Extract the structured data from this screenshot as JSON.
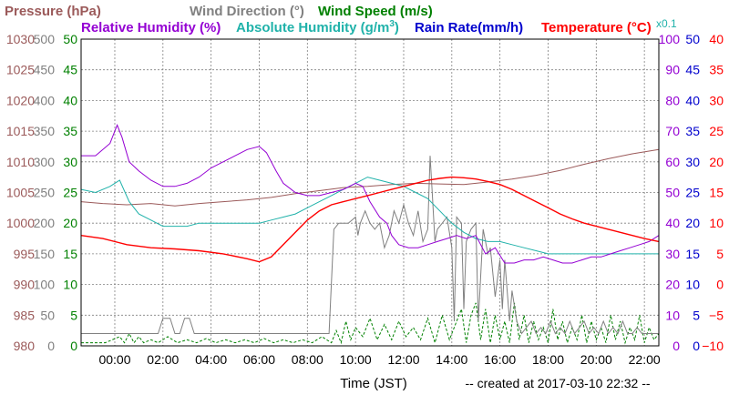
{
  "chart_data": {
    "type": "line",
    "title_row1": [
      {
        "text": "Pressure (hPa)",
        "color": "#9b5a5a"
      },
      {
        "text": "Wind Direction (°)",
        "color": "#808080"
      },
      {
        "text": "Wind Speed (m/s)",
        "color": "#008000"
      }
    ],
    "title_row2": [
      {
        "text": "Relative Humidity (%)",
        "color": "#9400d3"
      },
      {
        "text": "Absolute Humidity (g/m",
        "color": "#20b2aa",
        "sup": "3",
        "tail": ")"
      },
      {
        "text": "Rain Rate(mm/h)",
        "color": "#0000cd"
      },
      {
        "text": "Temperature (°C)",
        "color": "#ff0000"
      }
    ],
    "x10_label": "x0.1",
    "xlabel": "Time (JST)",
    "created": "-- created at 2017-03-10 22:32 --",
    "xlim": [
      -1.4,
      22.6
    ],
    "x_ticks": [
      "00:00",
      "02:00",
      "04:00",
      "06:00",
      "08:00",
      "10:00",
      "12:00",
      "14:00",
      "16:00",
      "18:00",
      "20:00",
      "22:00"
    ],
    "x_tick_values": [
      0,
      2,
      4,
      6,
      8,
      10,
      12,
      14,
      16,
      18,
      20,
      22
    ],
    "left_axes": [
      {
        "name": "pressure",
        "color": "#9b5a5a",
        "ticks": [
          "980",
          "985",
          "990",
          "995",
          "1000",
          "1005",
          "1010",
          "1015",
          "1020",
          "1025",
          "1030"
        ]
      },
      {
        "name": "wind-direction",
        "color": "#808080",
        "ticks": [
          "0",
          "50",
          "100",
          "150",
          "200",
          "250",
          "300",
          "350",
          "400",
          "450",
          "500"
        ]
      },
      {
        "name": "wind-speed",
        "color": "#008000",
        "ticks": [
          "0",
          "5",
          "10",
          "15",
          "20",
          "25",
          "30",
          "35",
          "40",
          "45",
          "50"
        ]
      }
    ],
    "right_axes": [
      {
        "name": "relative-humidity",
        "color": "#9400d3",
        "ticks": [
          "0",
          "10",
          "20",
          "30",
          "40",
          "50",
          "60",
          "70",
          "80",
          "90",
          "100"
        ]
      },
      {
        "name": "rain-rate",
        "color": "#0000cd",
        "ticks": [
          "0",
          "5",
          "10",
          "15",
          "20",
          "25",
          "30",
          "35",
          "40",
          "45",
          "50"
        ]
      },
      {
        "name": "temperature",
        "color": "#ff0000",
        "ticks": [
          "−10",
          "−5",
          "0",
          "5",
          "10",
          "15",
          "20",
          "25",
          "30",
          "35",
          "40"
        ]
      }
    ],
    "series": [
      {
        "name": "Pressure (hPa)",
        "key": "pressure",
        "color": "#9b5a5a",
        "dash": "",
        "width": 1,
        "ymin": 980,
        "ymax": 1030,
        "x": [
          -1.4,
          -0.5,
          0.5,
          1.5,
          2.5,
          3.5,
          4.5,
          5.5,
          6.5,
          7.5,
          8.5,
          9.5,
          10.5,
          11.5,
          12.5,
          13.5,
          14.5,
          15.5,
          16.5,
          17.5,
          18.5,
          19.5,
          20.5,
          21.5,
          22.6
        ],
        "y": [
          1003.5,
          1003.2,
          1003.0,
          1003.2,
          1002.8,
          1003.2,
          1003.5,
          1003.8,
          1004.2,
          1004.8,
          1005.3,
          1005.8,
          1006.0,
          1006.3,
          1006.5,
          1006.4,
          1006.3,
          1006.7,
          1007.2,
          1007.8,
          1008.6,
          1009.6,
          1010.5,
          1011.3,
          1012.0
        ]
      },
      {
        "name": "Wind Direction (°)",
        "key": "wind-direction",
        "color": "#808080",
        "dash": "",
        "width": 1,
        "ymin": 0,
        "ymax": 500,
        "x": [
          -1.4,
          1.8,
          2.0,
          2.3,
          2.5,
          2.7,
          2.9,
          3.1,
          3.3,
          3.5,
          3.6,
          8.9,
          9.1,
          9.3,
          9.5,
          9.7,
          10.0,
          10.1,
          10.2,
          10.4,
          10.6,
          10.8,
          11.0,
          11.2,
          11.4,
          11.6,
          11.8,
          12.0,
          12.2,
          12.4,
          12.6,
          12.8,
          13.0,
          13.1,
          13.2,
          13.3,
          13.4,
          13.6,
          13.8,
          14.0,
          14.1,
          14.2,
          14.4,
          14.5,
          14.6,
          14.8,
          15.0,
          15.1,
          15.3,
          15.5,
          15.6,
          15.8,
          16.0,
          16.1,
          16.2,
          16.4,
          16.5,
          16.7,
          16.9,
          17.1,
          17.3,
          17.5,
          17.7,
          17.9,
          18.1,
          18.3,
          18.5,
          18.7,
          18.9,
          19.1,
          19.3,
          19.5,
          19.7,
          19.9,
          20.1,
          20.3,
          20.5,
          20.7,
          20.9,
          21.1,
          21.3,
          21.5,
          21.7,
          21.9,
          22.1,
          22.3,
          22.6
        ],
        "y": [
          20,
          20,
          45,
          45,
          20,
          20,
          45,
          45,
          20,
          20,
          20,
          20,
          190,
          200,
          200,
          200,
          210,
          180,
          200,
          220,
          200,
          190,
          200,
          160,
          180,
          220,
          200,
          230,
          200,
          180,
          220,
          170,
          190,
          310,
          240,
          170,
          190,
          200,
          210,
          160,
          40,
          210,
          200,
          60,
          170,
          190,
          200,
          40,
          190,
          150,
          160,
          80,
          140,
          60,
          140,
          40,
          90,
          40,
          20,
          30,
          40,
          20,
          30,
          20,
          40,
          20,
          30,
          20,
          40,
          20,
          30,
          40,
          20,
          30,
          20,
          40,
          20,
          30,
          20,
          40,
          20,
          20,
          30,
          20,
          20,
          20,
          20
        ]
      },
      {
        "name": "Wind Speed (m/s)",
        "key": "wind-speed",
        "color": "#008000",
        "dash": "3,2",
        "width": 1,
        "ymin": 0,
        "ymax": 50,
        "x": [
          -1.4,
          -0.4,
          0.2,
          0.4,
          0.6,
          0.8,
          1.0,
          1.2,
          1.5,
          1.8,
          2.2,
          2.6,
          3.0,
          3.4,
          3.8,
          4.2,
          4.6,
          5.0,
          5.4,
          5.8,
          6.2,
          6.6,
          7.0,
          7.4,
          7.8,
          8.2,
          8.6,
          9.0,
          9.2,
          9.4,
          9.6,
          9.8,
          10.0,
          10.3,
          10.6,
          10.9,
          11.2,
          11.5,
          11.8,
          12.1,
          12.4,
          12.7,
          13.0,
          13.3,
          13.6,
          13.9,
          14.2,
          14.4,
          14.6,
          14.8,
          15.0,
          15.2,
          15.4,
          15.6,
          15.8,
          16.0,
          16.2,
          16.4,
          16.6,
          16.8,
          17.0,
          17.2,
          17.4,
          17.6,
          17.8,
          18.0,
          18.2,
          18.4,
          18.6,
          18.8,
          19.0,
          19.2,
          19.4,
          19.6,
          19.8,
          20.0,
          20.2,
          20.4,
          20.6,
          20.8,
          21.0,
          21.2,
          21.4,
          21.6,
          21.8,
          22.0,
          22.2,
          22.4,
          22.6
        ],
        "y": [
          0.5,
          0.5,
          1.5,
          0.5,
          2.0,
          0.5,
          1.5,
          0.5,
          1.0,
          0.5,
          1.5,
          0.5,
          1.0,
          0.5,
          1.2,
          0.5,
          1.0,
          0.5,
          1.0,
          0.5,
          1.2,
          0.5,
          1.0,
          0.5,
          1.0,
          0.5,
          1.5,
          0.5,
          2.5,
          0.5,
          4.0,
          1.0,
          3.0,
          1.5,
          4.5,
          1.0,
          3.5,
          1.0,
          4.0,
          1.5,
          3.0,
          1.0,
          4.5,
          0.5,
          5.0,
          1.0,
          4.0,
          6.0,
          0.5,
          5.0,
          7.0,
          1.0,
          6.0,
          0.5,
          5.0,
          1.0,
          4.0,
          0.5,
          7.0,
          1.0,
          5.0,
          0.5,
          4.0,
          1.0,
          3.0,
          0.5,
          6.0,
          1.0,
          4.0,
          0.5,
          3.0,
          1.0,
          5.0,
          0.5,
          4.0,
          1.0,
          3.0,
          0.5,
          5.0,
          1.0,
          4.0,
          0.5,
          3.0,
          1.0,
          5.0,
          0.5,
          3.0,
          1.0,
          2.0
        ]
      },
      {
        "name": "Relative Humidity (%)",
        "key": "relative-humidity",
        "color": "#9400d3",
        "dash": "",
        "width": 1,
        "ymin": 0,
        "ymax": 100,
        "x": [
          -1.4,
          -0.8,
          -0.2,
          0.1,
          0.3,
          0.6,
          1.0,
          1.5,
          2.0,
          2.5,
          3.0,
          3.5,
          4.0,
          4.5,
          5.0,
          5.5,
          6.0,
          6.3,
          6.7,
          7.0,
          7.5,
          8.0,
          8.5,
          9.0,
          9.5,
          10.0,
          10.3,
          10.6,
          11.0,
          11.3,
          11.5,
          11.8,
          12.2,
          12.6,
          13.0,
          13.4,
          13.8,
          14.2,
          14.6,
          15.0,
          15.4,
          15.8,
          16.2,
          16.6,
          17.0,
          17.4,
          17.8,
          18.2,
          18.6,
          19.0,
          19.4,
          19.8,
          20.2,
          20.6,
          21.0,
          21.4,
          21.8,
          22.2,
          22.6
        ],
        "y": [
          62,
          62,
          66,
          72,
          68,
          60,
          57,
          54,
          52,
          52,
          53,
          55,
          58,
          60,
          62,
          64,
          65,
          63,
          57,
          53,
          50,
          49,
          49,
          50,
          51,
          53,
          52,
          47,
          42,
          40,
          36,
          33,
          32,
          32,
          33,
          34,
          35,
          36,
          35,
          36,
          30,
          32,
          27,
          27,
          28,
          28,
          29,
          28,
          27,
          27,
          28,
          29,
          29,
          30,
          31,
          32,
          33,
          34,
          36
        ]
      },
      {
        "name": "Absolute Humidity (g/m3)",
        "key": "absolute-humidity",
        "color": "#20b2aa",
        "dash": "",
        "width": 1,
        "ymin": 0,
        "ymax": 100,
        "x": [
          -1.4,
          -0.8,
          -0.2,
          0.2,
          0.6,
          1.0,
          1.5,
          2.0,
          2.5,
          3.0,
          3.5,
          4.0,
          4.5,
          5.0,
          5.5,
          6.0,
          6.5,
          7.0,
          7.5,
          8.0,
          8.5,
          9.0,
          9.5,
          10.0,
          10.5,
          11.0,
          11.5,
          12.0,
          12.5,
          13.0,
          13.5,
          14.0,
          14.5,
          15.0,
          15.5,
          16.0,
          16.5,
          17.0,
          17.5,
          18.0,
          18.5,
          19.0,
          19.5,
          20.0,
          20.5,
          21.0,
          21.5,
          22.0,
          22.6
        ],
        "y": [
          51,
          50,
          52,
          54,
          47,
          43,
          41,
          39,
          39,
          39,
          40,
          40,
          40,
          40,
          40,
          40,
          41,
          42,
          43,
          45,
          47,
          49,
          51,
          53,
          55,
          54,
          53,
          52,
          50,
          48,
          44,
          40,
          37,
          35,
          34,
          34,
          33,
          32,
          31,
          30,
          30,
          30,
          30,
          30,
          30,
          30,
          30,
          30,
          30
        ]
      },
      {
        "name": "Rain Rate(mm/h)",
        "key": "rain-rate",
        "color": "#0000cd",
        "dash": "",
        "width": 1,
        "ymin": 0,
        "ymax": 50,
        "x": [
          -1.4,
          22.6
        ],
        "y": [
          0,
          0
        ]
      },
      {
        "name": "Temperature (°C)",
        "key": "temperature",
        "color": "#ff0000",
        "dash": "",
        "width": 1.4,
        "ymin": -10,
        "ymax": 40,
        "x": [
          -1.4,
          -0.5,
          0.5,
          1.5,
          2.5,
          3.5,
          4.5,
          5.5,
          6.0,
          6.5,
          7.0,
          7.5,
          8.0,
          8.5,
          9.0,
          9.5,
          10.0,
          10.5,
          11.0,
          11.5,
          12.0,
          12.5,
          13.0,
          13.5,
          14.0,
          14.5,
          15.0,
          15.5,
          16.0,
          16.5,
          17.0,
          17.5,
          18.0,
          18.5,
          19.0,
          19.5,
          20.0,
          20.5,
          21.0,
          21.5,
          22.0,
          22.6
        ],
        "y": [
          8,
          7.5,
          6.5,
          6.0,
          5.8,
          5.5,
          5.0,
          4.2,
          3.7,
          4.5,
          6.5,
          8.5,
          10.5,
          12.0,
          13.0,
          13.5,
          14.0,
          14.5,
          15.0,
          15.5,
          16.0,
          16.5,
          17.0,
          17.3,
          17.5,
          17.4,
          17.2,
          16.8,
          16.3,
          15.5,
          14.5,
          13.5,
          12.5,
          11.5,
          10.7,
          10.0,
          9.5,
          9.0,
          8.5,
          8.0,
          7.5,
          7.0
        ]
      }
    ]
  }
}
